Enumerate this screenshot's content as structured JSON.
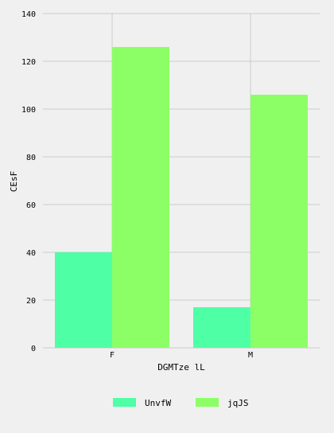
{
  "chart_data": {
    "type": "bar",
    "categories": [
      "F",
      "M"
    ],
    "series": [
      {
        "name": "UnvfW",
        "values": [
          40,
          17
        ],
        "color": "#4effa6"
      },
      {
        "name": "jqJS",
        "values": [
          126,
          106
        ],
        "color": "#8cff66"
      }
    ],
    "xlabel": "DGMTze lL",
    "ylabel": "CEsF",
    "ylim": [
      0,
      140
    ],
    "yticks": [
      0,
      20,
      40,
      60,
      80,
      100,
      120,
      140
    ],
    "grid": true,
    "legend_position": "bottom-center",
    "background": "#f0f0f0",
    "grid_color": "#cbcbcb"
  }
}
